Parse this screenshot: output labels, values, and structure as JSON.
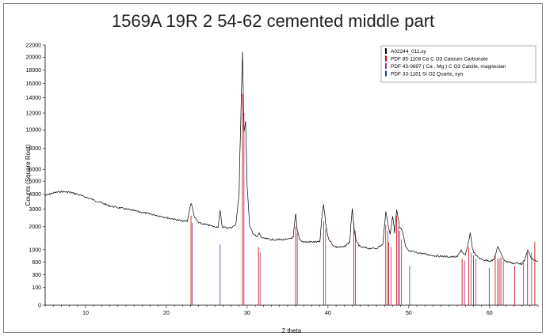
{
  "title": "1569A 19R 2 54-62 cemented middle part",
  "chart_data": {
    "type": "line",
    "title": "1569A 19R 2 54-62 cemented middle part",
    "xlabel": "2 theta",
    "ylabel": "Counts (Square Root)",
    "xlim": [
      5,
      66
    ],
    "ylim": [
      0,
      22000
    ],
    "yscale": "sqrt",
    "x_ticks": [
      10,
      20,
      30,
      40,
      50,
      60
    ],
    "y_ticks": [
      0,
      100,
      300,
      600,
      1000,
      2000,
      3000,
      4000,
      5000,
      6000,
      8000,
      10000,
      12000,
      14000,
      16000,
      18000,
      20000,
      22000
    ],
    "legend_position": "top-right",
    "legend": [
      {
        "label": "A02244_011.xy",
        "color": "#000000"
      },
      {
        "label": "PDF 85-1108 Ca C O3 Calcium Carbonate",
        "color": "#cc0000"
      },
      {
        "label": "PDF 43-0697 ( Ca , Mg ) C O3 Calcite, magnesian",
        "color": "#9a2c8a"
      },
      {
        "label": "PDF 33-1161 Si O2 Quartz, syn",
        "color": "#1f3fa8"
      }
    ],
    "series": [
      {
        "name": "A02244_011.xy",
        "color": "#000000",
        "x": [
          5,
          6,
          7,
          8,
          9,
          10,
          11,
          12,
          13,
          14,
          15,
          16,
          17,
          18,
          19,
          20,
          21,
          22,
          22.6,
          23.05,
          23.5,
          24,
          25,
          26,
          26.4,
          26.65,
          26.9,
          27.5,
          28,
          28.6,
          29.0,
          29.2,
          29.42,
          29.6,
          29.8,
          30.0,
          30.3,
          30.7,
          31.2,
          31.5,
          31.7,
          32,
          33,
          34,
          35,
          35.7,
          36.0,
          36.2,
          36.5,
          37,
          38,
          39,
          39.2,
          39.45,
          39.7,
          40,
          40.5,
          41,
          42,
          42.7,
          43.0,
          43.2,
          43.5,
          44,
          45,
          46,
          46.8,
          47.15,
          47.5,
          47.7,
          48.0,
          48.25,
          48.5,
          48.85,
          49.2,
          49.6,
          50,
          51,
          52,
          53,
          54,
          55,
          56,
          56.5,
          56.75,
          57.0,
          57.4,
          57.6,
          57.9,
          58.3,
          59,
          60,
          60.5,
          60.8,
          61.0,
          61.4,
          61.7,
          62,
          62.6,
          63,
          63.5,
          64,
          64.4,
          64.7,
          64.95,
          65.2,
          65.6,
          66
        ],
        "y": [
          3900,
          4100,
          4200,
          4150,
          4000,
          3800,
          3600,
          3400,
          3200,
          3100,
          3000,
          2900,
          2800,
          2700,
          2600,
          2500,
          2400,
          2300,
          2300,
          3400,
          2500,
          2200,
          2100,
          2000,
          2000,
          2900,
          2000,
          1950,
          1950,
          2100,
          4000,
          10800,
          20800,
          9800,
          11000,
          4500,
          2000,
          1700,
          1500,
          1700,
          1500,
          1450,
          1400,
          1400,
          1400,
          1500,
          2700,
          1800,
          1400,
          1300,
          1300,
          1300,
          2300,
          3300,
          2200,
          1500,
          1200,
          1100,
          1100,
          1300,
          3000,
          2000,
          1300,
          1100,
          1050,
          1050,
          1200,
          2800,
          2000,
          1600,
          2600,
          1700,
          3000,
          2000,
          1800,
          1100,
          950,
          900,
          850,
          800,
          780,
          760,
          760,
          1000,
          850,
          800,
          1300,
          1700,
          1000,
          800,
          680,
          640,
          660,
          900,
          1100,
          900,
          700,
          620,
          600,
          560,
          580,
          550,
          680,
          1000,
          850,
          700,
          650,
          620
        ]
      },
      {
        "name": "PDF 85-1108 Ca C O3 Calcium Carbonate",
        "color": "#cc0000",
        "sticks_x": [
          23.05,
          29.42,
          31.4,
          36.0,
          39.45,
          43.2,
          47.15,
          47.5,
          48.5,
          48.85,
          56.6,
          57.4,
          58.0,
          60.7,
          61.0,
          61.4,
          63.1,
          64.7,
          65.6
        ],
        "sticks_y": [
          2600,
          14500,
          1100,
          2000,
          2300,
          2200,
          2100,
          1300,
          2600,
          1800,
          700,
          1100,
          800,
          800,
          700,
          750,
          500,
          900,
          1300
        ]
      },
      {
        "name": "PDF 43-0697 ( Ca , Mg ) C O3 Calcite, magnesian",
        "color": "#9a2c8a",
        "sticks_x": [
          23.2,
          29.6,
          31.6,
          36.2,
          39.7,
          43.4,
          47.4,
          47.8,
          48.7,
          49.1,
          56.9,
          57.7,
          58.3,
          61.2,
          61.7,
          64.2,
          65.2
        ],
        "sticks_y": [
          2200,
          12000,
          900,
          1700,
          1900,
          1800,
          1800,
          1100,
          2000,
          1400,
          650,
          900,
          700,
          700,
          650,
          600,
          900
        ]
      },
      {
        "name": "PDF 33-1161 Si O2 Quartz, syn",
        "color": "#1f3fa8",
        "sticks_x": [
          26.65,
          50.1,
          59.95
        ],
        "sticks_y": [
          1200,
          500,
          450
        ]
      }
    ]
  }
}
